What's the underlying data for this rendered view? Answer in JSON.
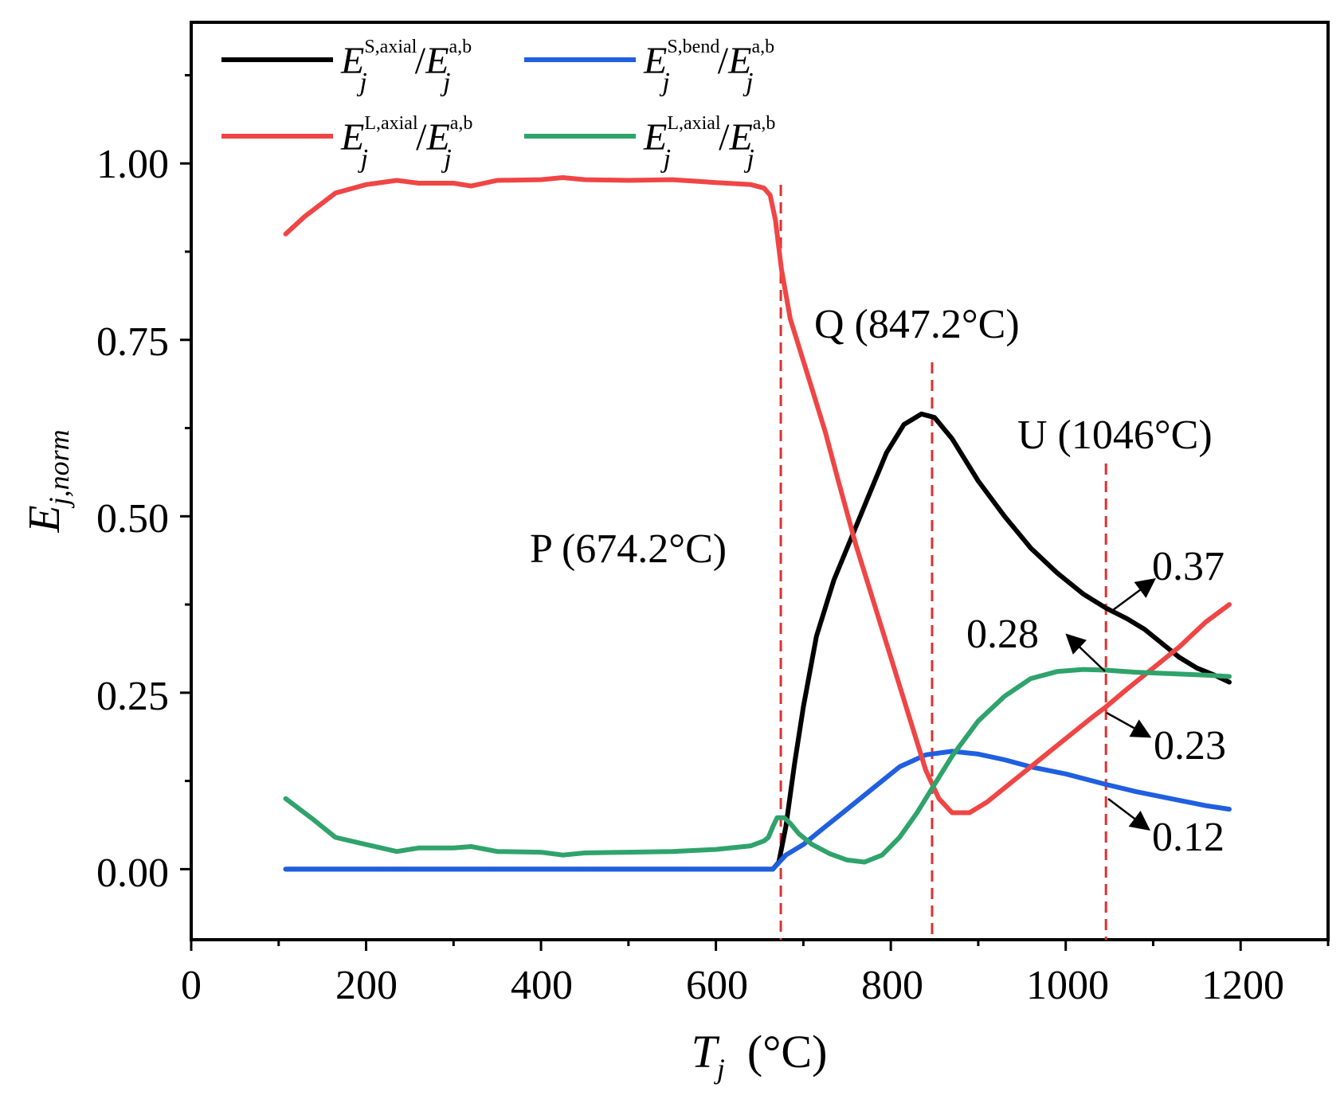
{
  "chart_data": {
    "type": "line",
    "title": "",
    "xlabel": {
      "main": "T",
      "sub": "j",
      "unit": "(°C)"
    },
    "ylabel": {
      "main": "E",
      "sub": "j,norm"
    },
    "xlim": [
      0,
      1300
    ],
    "ylim": [
      -0.1,
      1.2
    ],
    "x_ticks": [
      0,
      200,
      400,
      600,
      800,
      1000,
      1200
    ],
    "y_ticks": [
      0.0,
      0.25,
      0.5,
      0.75,
      1.0
    ],
    "x_tick_labels": [
      "0",
      "200",
      "400",
      "600",
      "800",
      "1000",
      "1200"
    ],
    "y_tick_labels": [
      "0.00",
      "0.25",
      "0.50",
      "0.75",
      "1.00"
    ],
    "grid": false,
    "legend_position": "top-left",
    "series": [
      {
        "name": "E_j^{S,axial}/E_j^{a,b}",
        "legend": {
          "E": "E",
          "j": "j",
          "sup1": "S,axial",
          "slash": "/",
          "sup2": "a,b"
        },
        "color": "#000000",
        "points": [
          [
            108,
            0
          ],
          [
            200,
            0
          ],
          [
            400,
            0
          ],
          [
            600,
            0
          ],
          [
            665,
            0
          ],
          [
            672,
            0.01
          ],
          [
            680,
            0.06
          ],
          [
            690,
            0.15
          ],
          [
            700,
            0.23
          ],
          [
            715,
            0.33
          ],
          [
            735,
            0.41
          ],
          [
            755,
            0.47
          ],
          [
            775,
            0.53
          ],
          [
            795,
            0.59
          ],
          [
            815,
            0.63
          ],
          [
            835,
            0.645
          ],
          [
            850,
            0.64
          ],
          [
            870,
            0.61
          ],
          [
            900,
            0.55
          ],
          [
            930,
            0.5
          ],
          [
            960,
            0.455
          ],
          [
            990,
            0.42
          ],
          [
            1020,
            0.39
          ],
          [
            1046,
            0.37
          ],
          [
            1070,
            0.355
          ],
          [
            1090,
            0.34
          ],
          [
            1110,
            0.32
          ],
          [
            1130,
            0.3
          ],
          [
            1150,
            0.285
          ],
          [
            1170,
            0.275
          ],
          [
            1187,
            0.265
          ]
        ]
      },
      {
        "name": "E_j^{S,bend}/E_j^{a,b}",
        "legend": {
          "E": "E",
          "j": "j",
          "sup1": "S,bend",
          "slash": "/",
          "sup2": "a,b"
        },
        "color": "#1f5fe0",
        "points": [
          [
            108,
            0
          ],
          [
            300,
            0
          ],
          [
            500,
            0
          ],
          [
            665,
            0
          ],
          [
            680,
            0.02
          ],
          [
            700,
            0.035
          ],
          [
            720,
            0.055
          ],
          [
            750,
            0.085
          ],
          [
            780,
            0.115
          ],
          [
            810,
            0.145
          ],
          [
            840,
            0.162
          ],
          [
            870,
            0.167
          ],
          [
            900,
            0.163
          ],
          [
            930,
            0.155
          ],
          [
            960,
            0.145
          ],
          [
            1000,
            0.135
          ],
          [
            1046,
            0.12
          ],
          [
            1080,
            0.11
          ],
          [
            1120,
            0.1
          ],
          [
            1160,
            0.09
          ],
          [
            1187,
            0.085
          ]
        ]
      },
      {
        "name": "E_j^{L,axial}/E_j^{a,b}",
        "legend": {
          "E": "E",
          "j": "j",
          "sup1": "L,axial",
          "slash": "/",
          "sup2": "a,b"
        },
        "color": "#f04545",
        "points": [
          [
            108,
            0.9
          ],
          [
            130,
            0.925
          ],
          [
            165,
            0.958
          ],
          [
            200,
            0.97
          ],
          [
            235,
            0.976
          ],
          [
            260,
            0.972
          ],
          [
            300,
            0.972
          ],
          [
            320,
            0.968
          ],
          [
            350,
            0.976
          ],
          [
            400,
            0.977
          ],
          [
            425,
            0.98
          ],
          [
            450,
            0.977
          ],
          [
            500,
            0.976
          ],
          [
            550,
            0.977
          ],
          [
            600,
            0.973
          ],
          [
            640,
            0.97
          ],
          [
            655,
            0.965
          ],
          [
            662,
            0.955
          ],
          [
            668,
            0.92
          ],
          [
            675,
            0.85
          ],
          [
            685,
            0.78
          ],
          [
            695,
            0.74
          ],
          [
            710,
            0.68
          ],
          [
            725,
            0.62
          ],
          [
            740,
            0.55
          ],
          [
            760,
            0.46
          ],
          [
            780,
            0.38
          ],
          [
            800,
            0.3
          ],
          [
            820,
            0.22
          ],
          [
            840,
            0.14
          ],
          [
            855,
            0.1
          ],
          [
            870,
            0.08
          ],
          [
            890,
            0.08
          ],
          [
            910,
            0.095
          ],
          [
            940,
            0.125
          ],
          [
            970,
            0.155
          ],
          [
            1000,
            0.185
          ],
          [
            1030,
            0.215
          ],
          [
            1046,
            0.23
          ],
          [
            1070,
            0.255
          ],
          [
            1100,
            0.285
          ],
          [
            1130,
            0.315
          ],
          [
            1160,
            0.35
          ],
          [
            1187,
            0.375
          ]
        ]
      },
      {
        "name": "E_j^{L,axial}/E_j^{a,b} (green)",
        "legend": {
          "E": "E",
          "j": "j",
          "sup1": "L,axial",
          "slash": "/",
          "sup2": "a,b"
        },
        "color": "#2fa36b",
        "points": [
          [
            108,
            0.1
          ],
          [
            140,
            0.07
          ],
          [
            165,
            0.045
          ],
          [
            200,
            0.035
          ],
          [
            235,
            0.025
          ],
          [
            260,
            0.03
          ],
          [
            300,
            0.03
          ],
          [
            320,
            0.032
          ],
          [
            350,
            0.025
          ],
          [
            400,
            0.024
          ],
          [
            425,
            0.02
          ],
          [
            450,
            0.023
          ],
          [
            500,
            0.024
          ],
          [
            550,
            0.025
          ],
          [
            600,
            0.028
          ],
          [
            640,
            0.033
          ],
          [
            655,
            0.04
          ],
          [
            660,
            0.045
          ],
          [
            665,
            0.06
          ],
          [
            670,
            0.073
          ],
          [
            678,
            0.073
          ],
          [
            685,
            0.065
          ],
          [
            695,
            0.05
          ],
          [
            710,
            0.035
          ],
          [
            730,
            0.022
          ],
          [
            750,
            0.013
          ],
          [
            770,
            0.01
          ],
          [
            790,
            0.02
          ],
          [
            810,
            0.045
          ],
          [
            830,
            0.08
          ],
          [
            850,
            0.12
          ],
          [
            870,
            0.16
          ],
          [
            900,
            0.21
          ],
          [
            930,
            0.245
          ],
          [
            960,
            0.27
          ],
          [
            990,
            0.28
          ],
          [
            1020,
            0.283
          ],
          [
            1046,
            0.282
          ],
          [
            1080,
            0.279
          ],
          [
            1120,
            0.277
          ],
          [
            1160,
            0.275
          ],
          [
            1187,
            0.273
          ]
        ]
      }
    ],
    "vlines": [
      {
        "x": 674.2,
        "label": "P (674.2°C)"
      },
      {
        "x": 847.2,
        "label": "Q (847.2°C)"
      },
      {
        "x": 1046,
        "label": "U (1046°C)"
      }
    ],
    "vline_color": "#e03030",
    "annotations": [
      {
        "text": "0.37",
        "x": 1046,
        "y": 0.37
      },
      {
        "text": "0.28",
        "x": 1046,
        "y": 0.28
      },
      {
        "text": "0.23",
        "x": 1046,
        "y": 0.23
      },
      {
        "text": "0.12",
        "x": 1046,
        "y": 0.12
      }
    ]
  }
}
